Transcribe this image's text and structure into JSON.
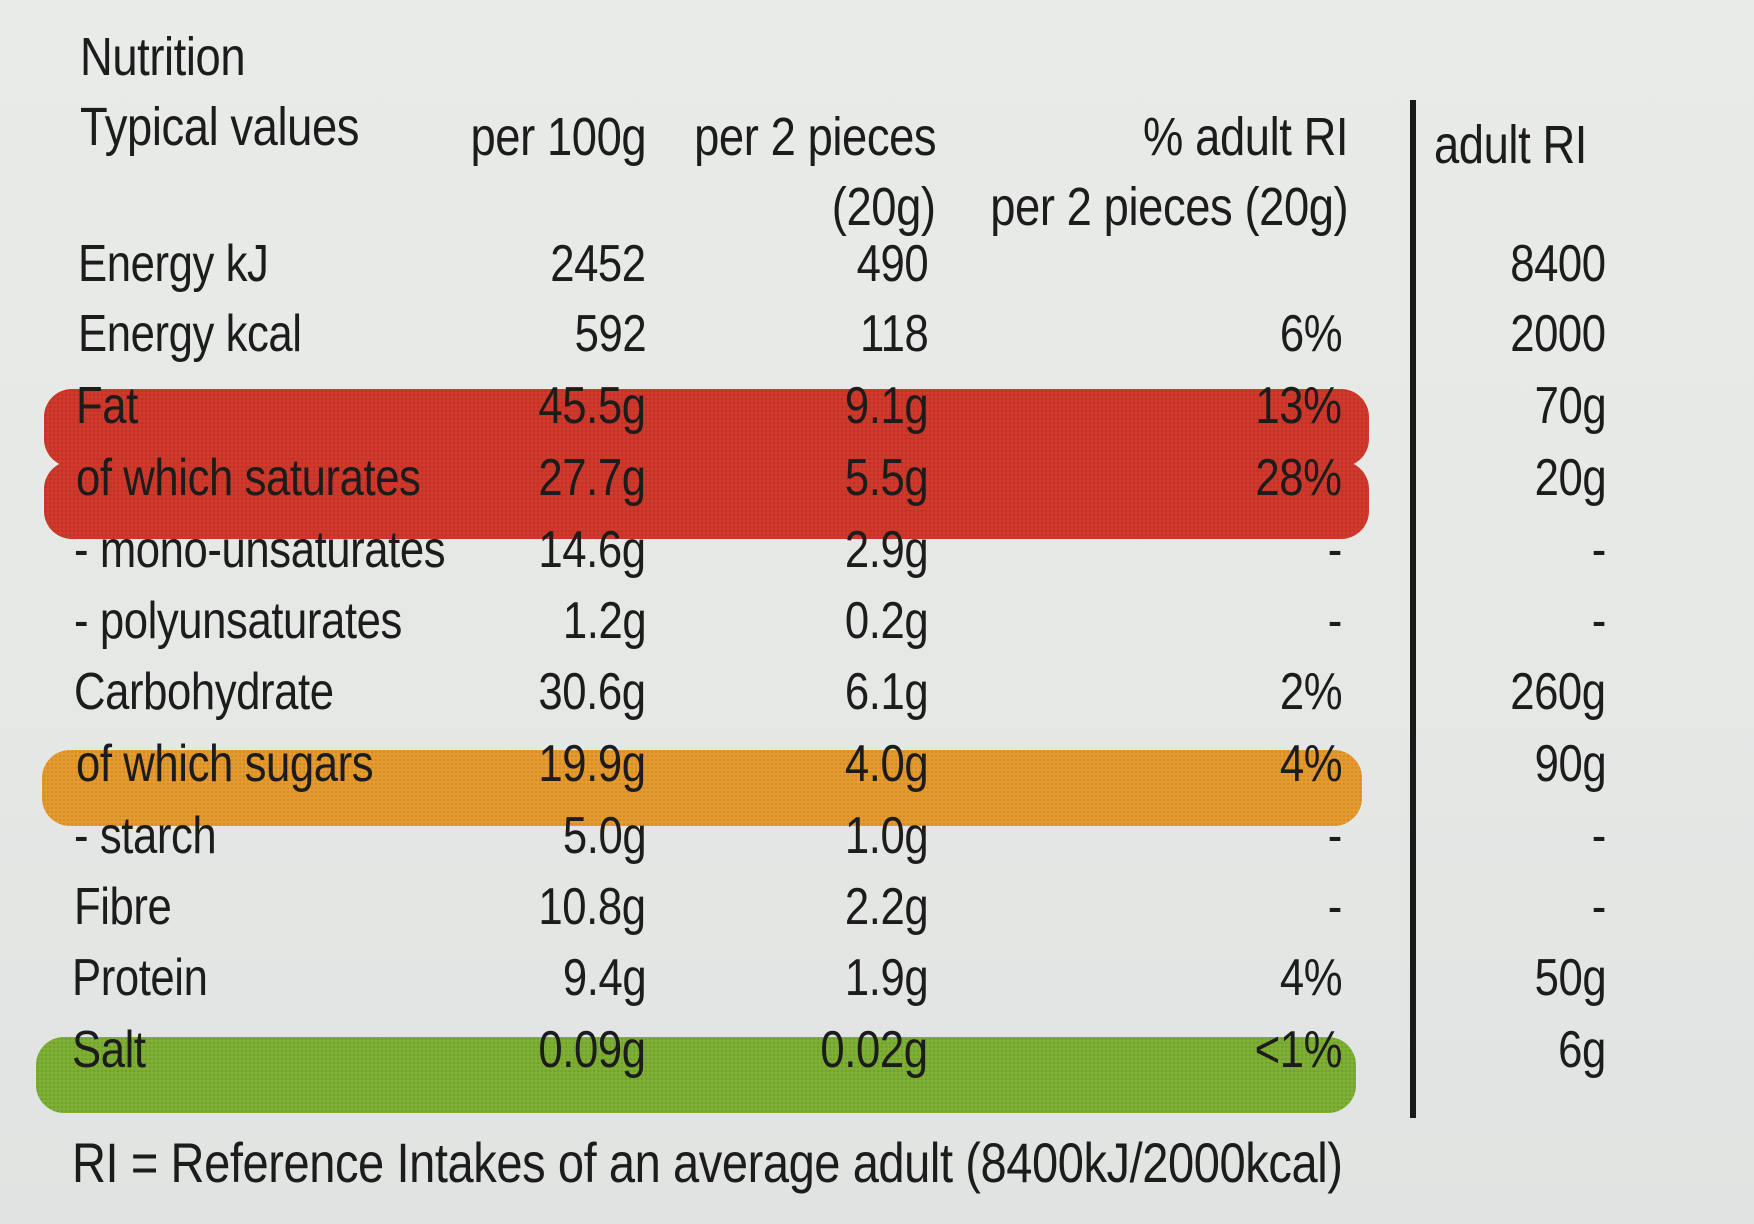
{
  "table": {
    "title": "Nutrition",
    "header": {
      "typical": "Typical values",
      "per100": "per 100g",
      "perPortion_l1": "per 2 pieces",
      "perPortion_l2": "(20g)",
      "ri_pct_l1": "% adult RI",
      "ri_pct_l2": "per 2 pieces (20g)",
      "adult_ri": "adult RI"
    },
    "rows": [
      {
        "label": "Energy kJ",
        "per100": "2452",
        "portion": "490",
        "ri_pct": "",
        "adult_ri": "8400"
      },
      {
        "label": "Energy kcal",
        "per100": "592",
        "portion": "118",
        "ri_pct": "6%",
        "adult_ri": "2000"
      },
      {
        "label": "Fat",
        "per100": "45.5g",
        "portion": "9.1g",
        "ri_pct": "13%",
        "adult_ri": "70g"
      },
      {
        "label": "of which saturates",
        "per100": "27.7g",
        "portion": "5.5g",
        "ri_pct": "28%",
        "adult_ri": "20g"
      },
      {
        "label": "- mono-unsaturates",
        "per100": "14.6g",
        "portion": "2.9g",
        "ri_pct": "-",
        "adult_ri": "-"
      },
      {
        "label": "- polyunsaturates",
        "per100": "1.2g",
        "portion": "0.2g",
        "ri_pct": "-",
        "adult_ri": "-"
      },
      {
        "label": "Carbohydrate",
        "per100": "30.6g",
        "portion": "6.1g",
        "ri_pct": "2%",
        "adult_ri": "260g"
      },
      {
        "label": "of which sugars",
        "per100": "19.9g",
        "portion": "4.0g",
        "ri_pct": "4%",
        "adult_ri": "90g"
      },
      {
        "label": "- starch",
        "per100": "5.0g",
        "portion": "1.0g",
        "ri_pct": "-",
        "adult_ri": "-"
      },
      {
        "label": "Fibre",
        "per100": "10.8g",
        "portion": "2.2g",
        "ri_pct": "-",
        "adult_ri": "-"
      },
      {
        "label": "Protein",
        "per100": "9.4g",
        "portion": "1.9g",
        "ri_pct": "4%",
        "adult_ri": "50g"
      },
      {
        "label": "Salt",
        "per100": "0.09g",
        "portion": "0.02g",
        "ri_pct": "<1%",
        "adult_ri": "6g"
      }
    ],
    "footnote": "RI = Reference Intakes of an average adult (8400kJ/2000kcal)"
  },
  "colors": {
    "fat_band": "#d2392b",
    "sugars_band": "#e99c2e",
    "salt_band": "#7fb135",
    "text": "#1c1c1c",
    "background": "#e7e9e7"
  }
}
